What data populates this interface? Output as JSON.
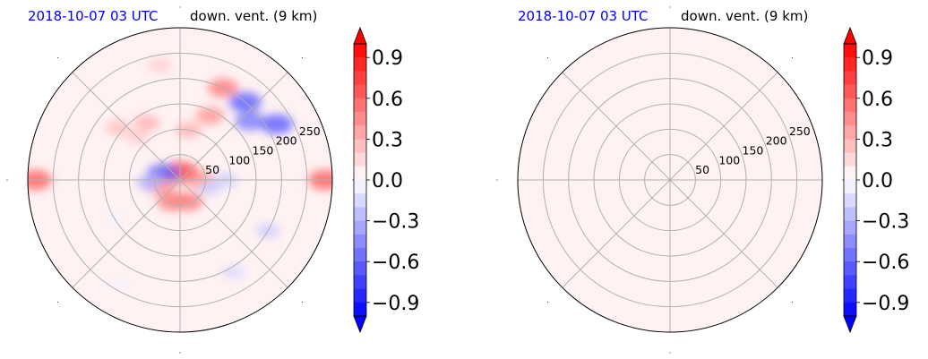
{
  "chart_data": [
    {
      "type": "heatmap",
      "projection": "polar",
      "title_left": "2018-10-07 03 UTC",
      "title_right": "down. vent. (9 km)",
      "radial_ticks": [
        50,
        100,
        150,
        200,
        250
      ],
      "rmax": 300,
      "angular_grid_deg": [
        0,
        45,
        90,
        135,
        180,
        225,
        270,
        315
      ],
      "grid": true,
      "colormap": "bwr",
      "color_range": [
        -1.0,
        1.0
      ],
      "colorbar_ticks": [
        "−0.9",
        "−0.6",
        "−0.3",
        "0.0",
        "0.3",
        "0.6",
        "0.9"
      ],
      "colorbar_tick_values": [
        -0.9,
        -0.6,
        -0.3,
        0.0,
        0.3,
        0.6,
        0.9
      ],
      "colorbar_extend": "both",
      "field": [
        {
          "r": 15,
          "theta": 90,
          "value": 0.7
        },
        {
          "r": 15,
          "theta": 60,
          "value": 0.6
        },
        {
          "r": 35,
          "theta": 160,
          "value": -0.6
        },
        {
          "r": 40,
          "theta": 0,
          "value": 0.4
        },
        {
          "r": 45,
          "theta": 250,
          "value": 0.5
        },
        {
          "r": 45,
          "theta": 290,
          "value": 0.5
        },
        {
          "r": 40,
          "theta": 200,
          "value": 0.4
        },
        {
          "r": 60,
          "theta": 185,
          "value": -0.3
        },
        {
          "r": 60,
          "theta": 345,
          "value": -0.2
        },
        {
          "r": 100,
          "theta": 80,
          "value": 0.3
        },
        {
          "r": 130,
          "theta": 120,
          "value": 0.3
        },
        {
          "r": 140,
          "theta": 65,
          "value": 0.4
        },
        {
          "r": 180,
          "theta": 40,
          "value": -0.5
        },
        {
          "r": 200,
          "theta": 65,
          "value": 0.5
        },
        {
          "r": 200,
          "theta": 50,
          "value": -0.6
        },
        {
          "r": 220,
          "theta": 30,
          "value": -0.6
        },
        {
          "r": 90,
          "theta": 0,
          "value": -0.2
        },
        {
          "r": 120,
          "theta": 135,
          "value": 0.2
        },
        {
          "r": 160,
          "theta": 140,
          "value": 0.25
        },
        {
          "r": 230,
          "theta": 100,
          "value": 0.2
        },
        {
          "r": 210,
          "theta": 300,
          "value": -0.15
        },
        {
          "r": 200,
          "theta": 330,
          "value": -0.2
        },
        {
          "r": 150,
          "theta": 210,
          "value": -0.05
        },
        {
          "r": 240,
          "theta": 240,
          "value": -0.05
        },
        {
          "r": 285,
          "theta": 180,
          "value": 0.6
        },
        {
          "r": 285,
          "theta": 0,
          "value": 0.6
        }
      ],
      "background_value": 0.05
    },
    {
      "type": "heatmap",
      "projection": "polar",
      "title_left": "2018-10-07 03 UTC",
      "title_right": "down. vent. (9 km)",
      "radial_ticks": [
        50,
        100,
        150,
        200,
        250
      ],
      "rmax": 300,
      "angular_grid_deg": [
        0,
        45,
        90,
        135,
        180,
        225,
        270,
        315
      ],
      "grid": true,
      "colormap": "bwr",
      "color_range": [
        -1.0,
        1.0
      ],
      "colorbar_ticks": [
        "−0.9",
        "−0.6",
        "−0.3",
        "0.0",
        "0.3",
        "0.6",
        "0.9"
      ],
      "colorbar_tick_values": [
        -0.9,
        -0.6,
        -0.3,
        0.0,
        0.3,
        0.6,
        0.9
      ],
      "colorbar_extend": "both",
      "field": [],
      "background_value": 0.05
    }
  ]
}
